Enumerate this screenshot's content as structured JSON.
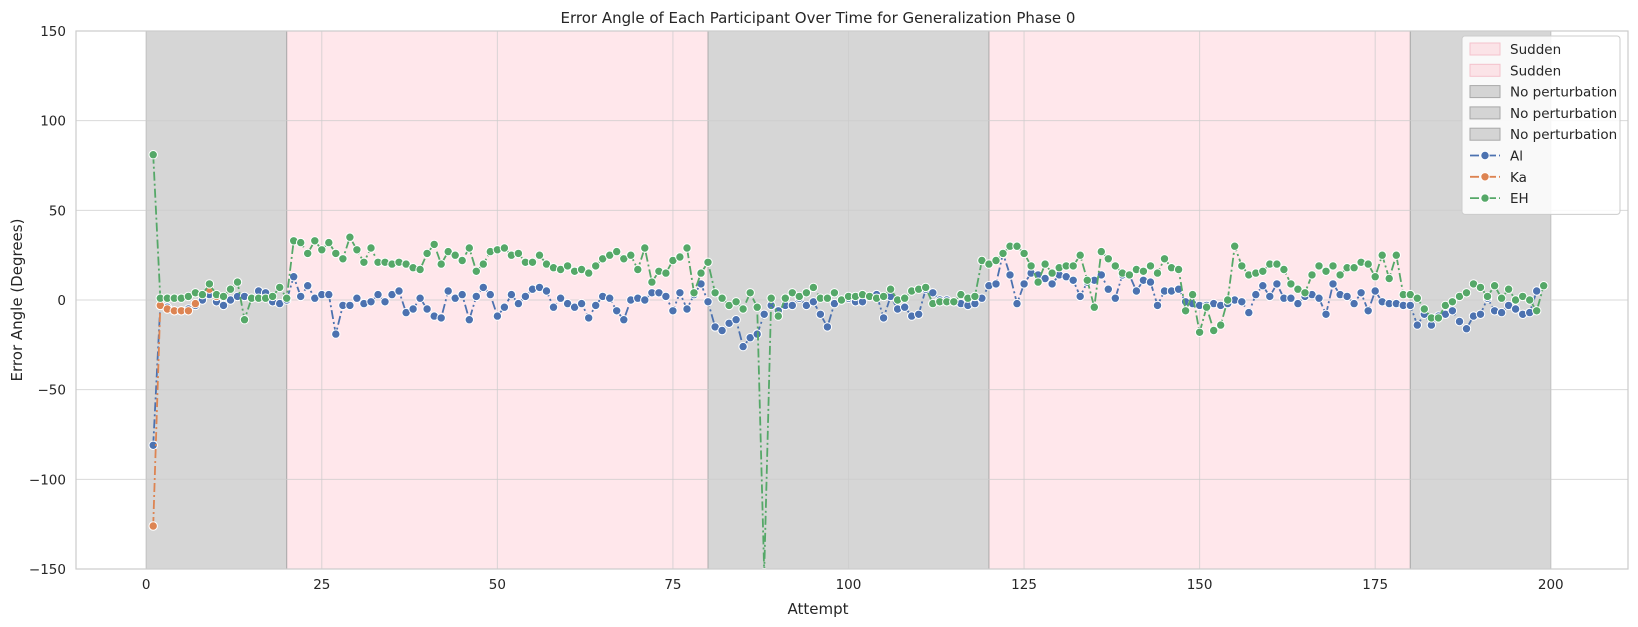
{
  "chart_data": {
    "type": "line",
    "title": "Error Angle of Each Participant Over Time for Generalization Phase 0",
    "xlabel": "Attempt",
    "ylabel": "Error Angle (Degrees)",
    "xlim": [
      -10,
      211
    ],
    "ylim": [
      -150,
      150
    ],
    "xticks": [
      0,
      25,
      50,
      75,
      100,
      125,
      150,
      175,
      200
    ],
    "yticks": [
      -150,
      -100,
      -50,
      0,
      50,
      100,
      150
    ],
    "grid": true,
    "legend_position": "top-right",
    "regions": [
      {
        "label": "No perturbation",
        "x0": 0,
        "x1": 20,
        "color": "#bdbdbd"
      },
      {
        "label": "Sudden",
        "x0": 20,
        "x1": 80,
        "color": "#ffc0cb"
      },
      {
        "label": "No perturbation",
        "x0": 80,
        "x1": 120,
        "color": "#bdbdbd"
      },
      {
        "label": "Sudden",
        "x0": 120,
        "x1": 180,
        "color": "#ffc0cb"
      },
      {
        "label": "No perturbation",
        "x0": 180,
        "x1": 200,
        "color": "#bdbdbd"
      }
    ],
    "legend": [
      {
        "label": "Sudden",
        "kind": "patch",
        "color": "#ffc0cb"
      },
      {
        "label": "Sudden",
        "kind": "patch",
        "color": "#ffc0cb"
      },
      {
        "label": "No perturbation",
        "kind": "patch",
        "color": "#bdbdbd"
      },
      {
        "label": "No perturbation",
        "kind": "patch",
        "color": "#bdbdbd"
      },
      {
        "label": "No perturbation",
        "kind": "patch",
        "color": "#bdbdbd"
      },
      {
        "label": "Al",
        "kind": "line",
        "color": "#4c72b0"
      },
      {
        "label": "Ka",
        "kind": "line",
        "color": "#dd8452"
      },
      {
        "label": "EH",
        "kind": "line",
        "color": "#55a868"
      }
    ],
    "series": [
      {
        "name": "Al",
        "color": "#4c72b0",
        "x_start": 1,
        "values": [
          -81,
          -3,
          -4,
          -6,
          -6,
          -5,
          -3,
          0,
          3,
          -1,
          -3,
          0,
          2,
          2,
          1,
          5,
          4,
          -1,
          -2,
          0,
          13,
          2,
          8,
          1,
          3,
          3,
          -19,
          -3,
          -3,
          1,
          -2,
          -1,
          3,
          -1,
          3,
          5,
          -7,
          -5,
          1,
          -5,
          -9,
          -10,
          5,
          1,
          3,
          -11,
          2,
          7,
          3,
          -9,
          -4,
          3,
          -2,
          2,
          6,
          7,
          5,
          -4,
          1,
          -2,
          -4,
          -2,
          -10,
          -3,
          2,
          1,
          -6,
          -11,
          0,
          1,
          0,
          4,
          4,
          2,
          -6,
          4,
          -5,
          3,
          9,
          -1,
          -15,
          -17,
          -13,
          -11,
          -26,
          -21,
          -19,
          -8,
          -3,
          -6,
          -3,
          -3,
          1,
          -3,
          -1,
          -8,
          -15,
          -2,
          0,
          1,
          -1,
          -1,
          2,
          3,
          -10,
          2,
          -5,
          -4,
          -9,
          -8,
          6,
          4,
          0,
          0,
          -1,
          -2,
          -3,
          -2,
          1,
          8,
          9,
          26,
          14,
          -2,
          9,
          15,
          14,
          12,
          9,
          14,
          13,
          11,
          2,
          10,
          11,
          14,
          6,
          1,
          14,
          14,
          5,
          11,
          10,
          -3,
          5,
          5,
          6,
          -1,
          -2,
          -3,
          -3,
          -2,
          -3,
          -2,
          0,
          -1,
          -7,
          3,
          8,
          2,
          9,
          1,
          1,
          -2,
          2,
          3,
          1,
          -8,
          9,
          3,
          2,
          -2,
          4,
          -6,
          5,
          -1,
          -2,
          -2,
          -3,
          -3,
          -14,
          -8,
          -14,
          -9,
          -8,
          -6,
          -12,
          -16,
          -9,
          -8,
          1,
          -6,
          -7,
          -3,
          -5,
          -8,
          -7,
          5
        ]
      },
      {
        "name": "Ka",
        "color": "#dd8452",
        "x_start": 1,
        "values": [
          -126,
          -3,
          -5,
          -6,
          -6,
          -6,
          -2,
          3,
          6,
          2
        ]
      },
      {
        "name": "EH",
        "color": "#55a868",
        "x_start": 1,
        "values": [
          81,
          1,
          1,
          1,
          1,
          2,
          4,
          3,
          9,
          3,
          2,
          6,
          10,
          -11,
          1,
          1,
          1,
          2,
          7,
          1,
          33,
          32,
          26,
          33,
          28,
          32,
          26,
          23,
          35,
          28,
          21,
          29,
          21,
          21,
          20,
          21,
          20,
          18,
          17,
          26,
          31,
          20,
          27,
          25,
          22,
          29,
          16,
          20,
          27,
          28,
          29,
          25,
          26,
          21,
          21,
          25,
          20,
          18,
          17,
          19,
          16,
          17,
          15,
          19,
          23,
          25,
          27,
          23,
          25,
          17,
          29,
          10,
          16,
          15,
          22,
          24,
          29,
          4,
          15,
          21,
          4,
          1,
          -3,
          -1,
          -5,
          4,
          -4,
          -152,
          1,
          -9,
          1,
          4,
          2,
          4,
          7,
          1,
          1,
          4,
          0,
          2,
          2,
          3,
          2,
          1,
          2,
          6,
          0,
          1,
          5,
          6,
          7,
          -2,
          -1,
          -1,
          -1,
          3,
          1,
          2,
          22,
          20,
          22,
          26,
          30,
          30,
          26,
          19,
          10,
          20,
          15,
          18,
          19,
          19,
          25,
          11,
          -4,
          27,
          23,
          19,
          15,
          14,
          17,
          16,
          19,
          15,
          23,
          18,
          17,
          -6,
          3,
          -18,
          -4,
          -17,
          -14,
          0,
          30,
          19,
          14,
          15,
          16,
          20,
          20,
          17,
          9,
          6,
          4,
          14,
          19,
          16,
          19,
          14,
          18,
          18,
          21,
          20,
          13,
          25,
          12,
          25,
          3,
          3,
          1,
          -5,
          -10,
          -10,
          -3,
          -1,
          2,
          4,
          9,
          7,
          2,
          8,
          1,
          6,
          0,
          2,
          0,
          -6,
          8
        ]
      }
    ]
  }
}
